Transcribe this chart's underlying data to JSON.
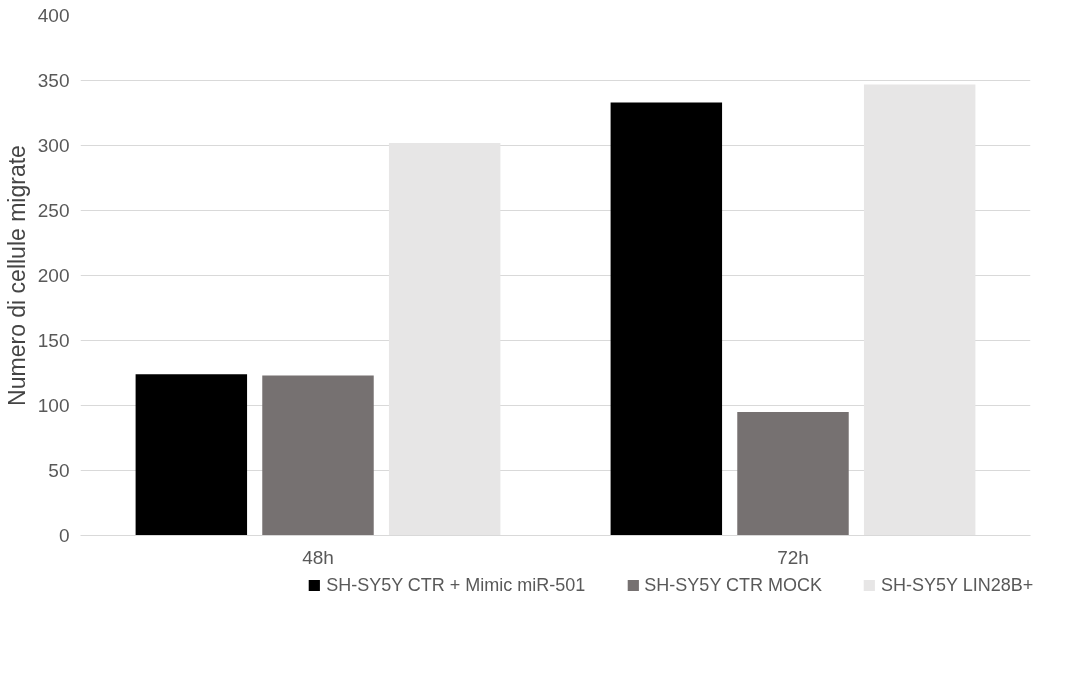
{
  "chart_data": {
    "type": "bar",
    "ylabel": "Numero di cellule migrate",
    "categories": [
      "48h",
      "72h"
    ],
    "series": [
      {
        "name": "SH-SY5Y CTR + Mimic miR-501",
        "color": "#000000",
        "values": [
          124,
          333
        ]
      },
      {
        "name": "SH-SY5Y CTR MOCK",
        "color": "#767171",
        "values": [
          123,
          95
        ]
      },
      {
        "name": "SH-SY5Y LIN28B+",
        "color": "#e7e6e6",
        "values": [
          302,
          347
        ]
      }
    ],
    "ylim": [
      0,
      400
    ],
    "yticks": [
      0,
      50,
      100,
      150,
      200,
      250,
      300,
      350,
      400
    ],
    "grid": "y",
    "legend": "bottom"
  }
}
